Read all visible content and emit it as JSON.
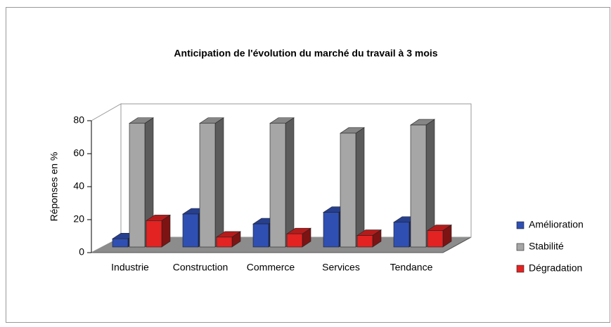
{
  "chart_data": {
    "type": "bar3d",
    "title": "Anticipation de l'évolution du marché du travail à 3 mois",
    "y_label": "Réponses en %",
    "categories": [
      "Industrie",
      "Construction",
      "Commerce",
      "Services",
      "Tendance"
    ],
    "series": [
      {
        "name": "Amélioration",
        "color": "#2f4fb3",
        "values": [
          5,
          20,
          14,
          21,
          15
        ]
      },
      {
        "name": "Stabilité",
        "color": "#a6a6a6",
        "values": [
          75,
          75,
          75,
          69,
          74
        ]
      },
      {
        "name": "Dégradation",
        "color": "#e32222",
        "values": [
          16,
          6,
          8,
          7,
          10
        ]
      }
    ],
    "ylim": [
      0,
      80
    ],
    "yticks": [
      0,
      20,
      40,
      60,
      80
    ],
    "grid": false,
    "legend": "right"
  }
}
